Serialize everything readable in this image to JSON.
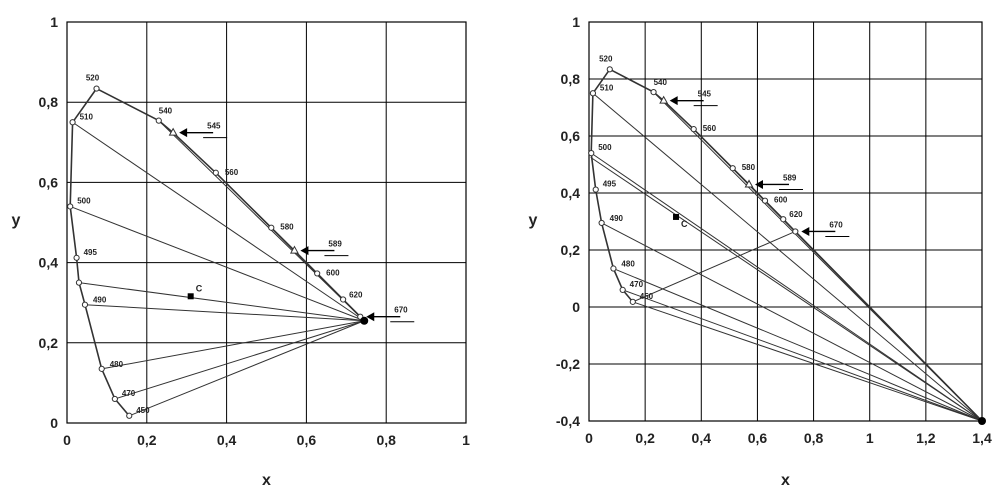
{
  "chart_data": [
    {
      "type": "scatter",
      "panel": "left",
      "xlabel": "x",
      "ylabel": "y",
      "xlim": [
        0,
        1
      ],
      "ylim": [
        0,
        1
      ],
      "xticks": [
        0,
        0.2,
        0.4,
        0.6,
        0.8,
        1
      ],
      "yticks": [
        0,
        0.2,
        0.4,
        0.6,
        0.8,
        1
      ],
      "xtick_labels": [
        "0",
        "0,2",
        "0,4",
        "0,6",
        "0,8",
        "1"
      ],
      "ytick_labels": [
        "0",
        "0,2",
        "0,4",
        "0,6",
        "0,8",
        "1"
      ],
      "grid": true,
      "locus": [
        {
          "label": "450",
          "x": 0.156,
          "y": 0.018
        },
        {
          "label": "470",
          "x": 0.12,
          "y": 0.06
        },
        {
          "label": "480",
          "x": 0.087,
          "y": 0.135
        },
        {
          "label": "490",
          "x": 0.045,
          "y": 0.295
        },
        {
          "label": "",
          "x": 0.03,
          "y": 0.35
        },
        {
          "label": "495",
          "x": 0.024,
          "y": 0.412
        },
        {
          "label": "500",
          "x": 0.008,
          "y": 0.54
        },
        {
          "label": "510",
          "x": 0.014,
          "y": 0.75
        },
        {
          "label": "520",
          "x": 0.074,
          "y": 0.834
        },
        {
          "label": "540",
          "x": 0.23,
          "y": 0.754
        },
        {
          "label": "545",
          "x": 0.266,
          "y": 0.724
        },
        {
          "label": "560",
          "x": 0.373,
          "y": 0.624
        },
        {
          "label": "580",
          "x": 0.512,
          "y": 0.487
        },
        {
          "label": "589",
          "x": 0.57,
          "y": 0.43
        },
        {
          "label": "600",
          "x": 0.627,
          "y": 0.373
        },
        {
          "label": "620",
          "x": 0.692,
          "y": 0.308
        },
        {
          "label": "",
          "x": 0.735,
          "y": 0.265
        }
      ],
      "triangle_markers": [
        "545",
        "589"
      ],
      "arrows": [
        "545",
        "589",
        "670"
      ],
      "arrow_points": [
        {
          "label": "545",
          "x": 0.266,
          "y": 0.724
        },
        {
          "label": "589",
          "x": 0.57,
          "y": 0.43
        },
        {
          "label": "670",
          "x": 0.735,
          "y": 0.265
        }
      ],
      "reference_point": {
        "label": "C",
        "x": 0.31,
        "y": 0.316
      },
      "convergence_point": {
        "x": 0.745,
        "y": 0.255
      },
      "rays_to": [
        "450",
        "470",
        "480",
        "490",
        "",
        "500",
        "510",
        "540",
        "560",
        "580",
        "600",
        "620"
      ]
    },
    {
      "type": "scatter",
      "panel": "right",
      "xlabel": "x",
      "ylabel": "y",
      "xlim": [
        0,
        1.4
      ],
      "ylim": [
        -0.4,
        1
      ],
      "xticks": [
        0,
        0.2,
        0.4,
        0.6,
        0.8,
        1,
        1.2,
        1.4
      ],
      "yticks": [
        -0.4,
        -0.2,
        0,
        0.2,
        0.4,
        0.6,
        0.8,
        1
      ],
      "xtick_labels": [
        "0",
        "0,2",
        "0,4",
        "0,6",
        "0,8",
        "1",
        "1,2",
        "1,4"
      ],
      "ytick_labels": [
        "-0,4",
        "-0,2",
        "0",
        "0,2",
        "0,4",
        "0,6",
        "0,8",
        "1"
      ],
      "grid": true,
      "locus": [
        {
          "label": "450",
          "x": 0.156,
          "y": 0.018
        },
        {
          "label": "470",
          "x": 0.12,
          "y": 0.06
        },
        {
          "label": "480",
          "x": 0.087,
          "y": 0.135
        },
        {
          "label": "490",
          "x": 0.045,
          "y": 0.295
        },
        {
          "label": "495",
          "x": 0.024,
          "y": 0.412
        },
        {
          "label": "500",
          "x": 0.008,
          "y": 0.54
        },
        {
          "label": "510",
          "x": 0.014,
          "y": 0.75
        },
        {
          "label": "520",
          "x": 0.074,
          "y": 0.834
        },
        {
          "label": "540",
          "x": 0.23,
          "y": 0.754
        },
        {
          "label": "545",
          "x": 0.266,
          "y": 0.724
        },
        {
          "label": "560",
          "x": 0.373,
          "y": 0.624
        },
        {
          "label": "580",
          "x": 0.512,
          "y": 0.487
        },
        {
          "label": "589",
          "x": 0.57,
          "y": 0.43
        },
        {
          "label": "600",
          "x": 0.627,
          "y": 0.373
        },
        {
          "label": "620",
          "x": 0.692,
          "y": 0.308
        },
        {
          "label": "",
          "x": 0.735,
          "y": 0.265
        }
      ],
      "triangle_markers": [
        "545",
        "589"
      ],
      "arrows": [
        "545",
        "589",
        "670"
      ],
      "arrow_points": [
        {
          "label": "545",
          "x": 0.266,
          "y": 0.724
        },
        {
          "label": "589",
          "x": 0.57,
          "y": 0.43
        },
        {
          "label": "670",
          "x": 0.735,
          "y": 0.265
        }
      ],
      "reference_point": {
        "label": "C",
        "x": 0.31,
        "y": 0.316
      },
      "convergence_point": {
        "x": 1.4,
        "y": -0.4
      },
      "rays_to": [
        "450",
        "470",
        "480",
        "490",
        "500",
        "510",
        "540",
        "560",
        "580",
        "600",
        "620"
      ],
      "extra_segments": [
        {
          "from": {
            "x": 0.156,
            "y": 0.018
          },
          "to": {
            "x": 0.735,
            "y": 0.265
          }
        },
        {
          "from": {
            "x": 0.006,
            "y": 0.525
          },
          "to": {
            "x": 1.4,
            "y": -0.4
          }
        }
      ]
    }
  ],
  "style": {
    "line_color": "#333333",
    "grid_color": "#000000",
    "marker_fill": "#ffffff",
    "point_color": "#000000"
  }
}
